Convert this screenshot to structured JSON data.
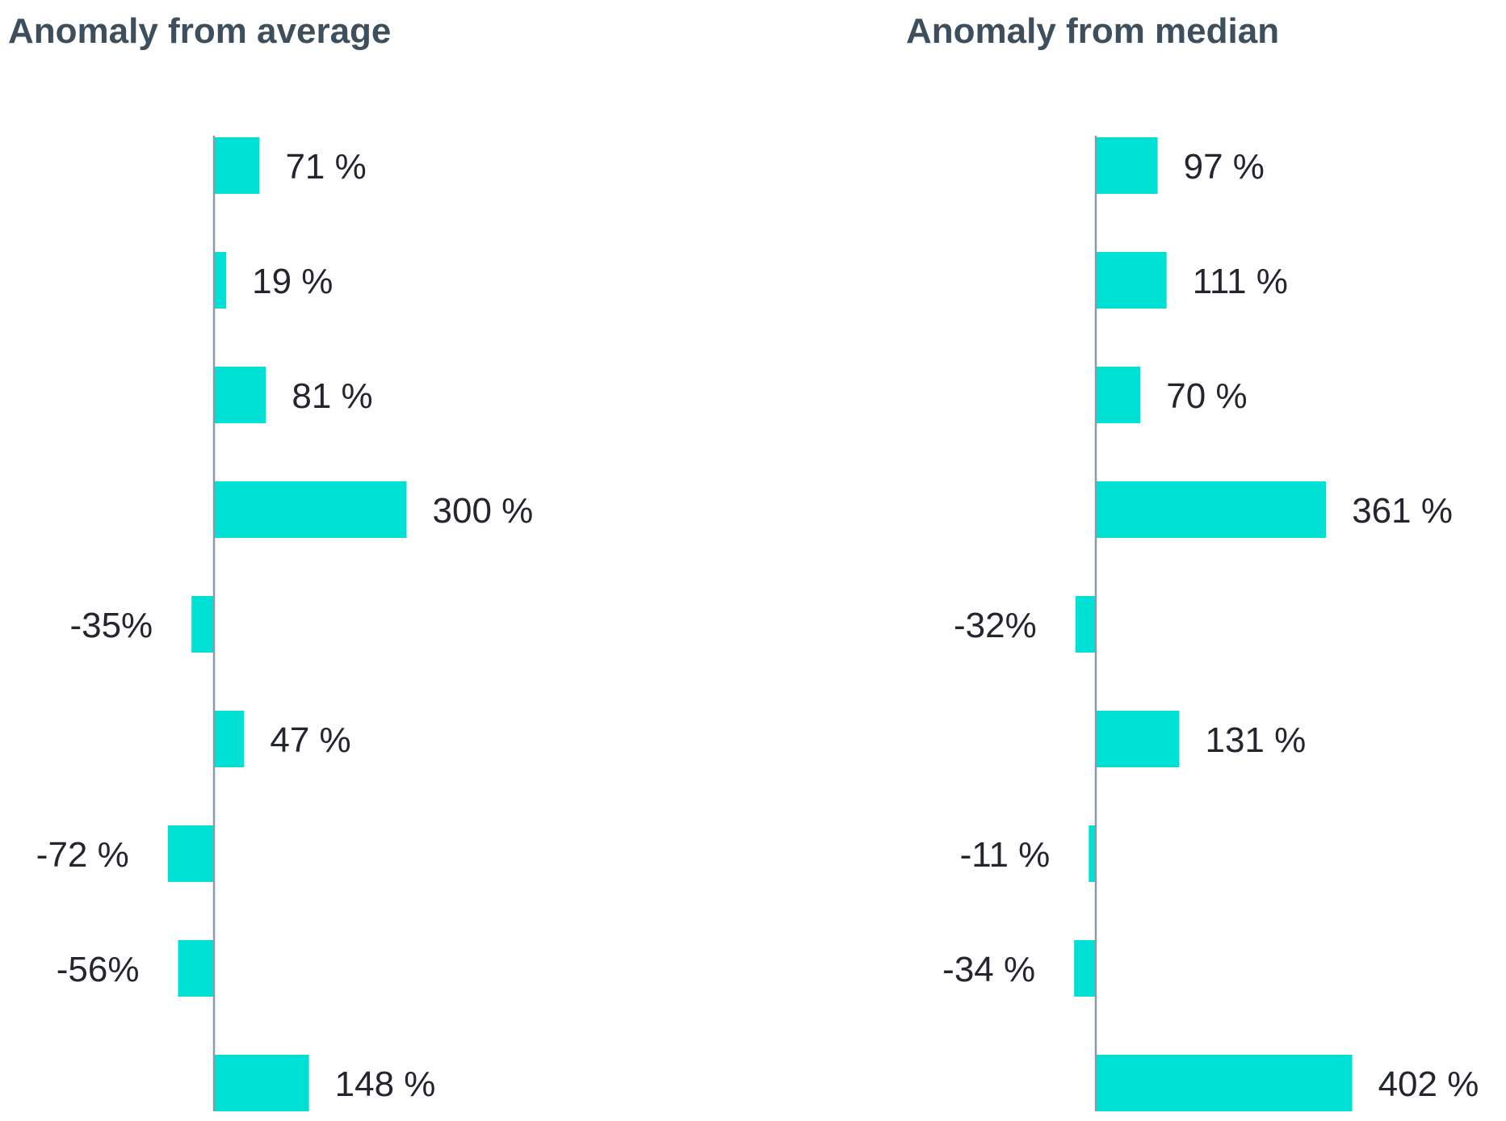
{
  "chart_data": [
    {
      "type": "bar",
      "orientation": "horizontal",
      "title": "Anomaly from average",
      "values": [
        71,
        19,
        81,
        300,
        -35,
        47,
        -72,
        -56,
        148
      ],
      "labels": [
        "71 %",
        "19 %",
        "81 %",
        "300 %",
        "-35%",
        "47 %",
        "-72 %",
        "-56%",
        "148 %"
      ],
      "color": "#00e0d4",
      "axis_color": "#8a9aa6",
      "grid": false
    },
    {
      "type": "bar",
      "orientation": "horizontal",
      "title": "Anomaly from median",
      "values": [
        97,
        111,
        70,
        361,
        -32,
        131,
        -11,
        -34,
        402
      ],
      "labels": [
        "97 %",
        "111 %",
        "70 %",
        "361 %",
        "-32%",
        "131 %",
        "-11 %",
        "-34 %",
        "402 %"
      ],
      "color": "#00e0d4",
      "axis_color": "#8a9aa6",
      "grid": false
    }
  ]
}
